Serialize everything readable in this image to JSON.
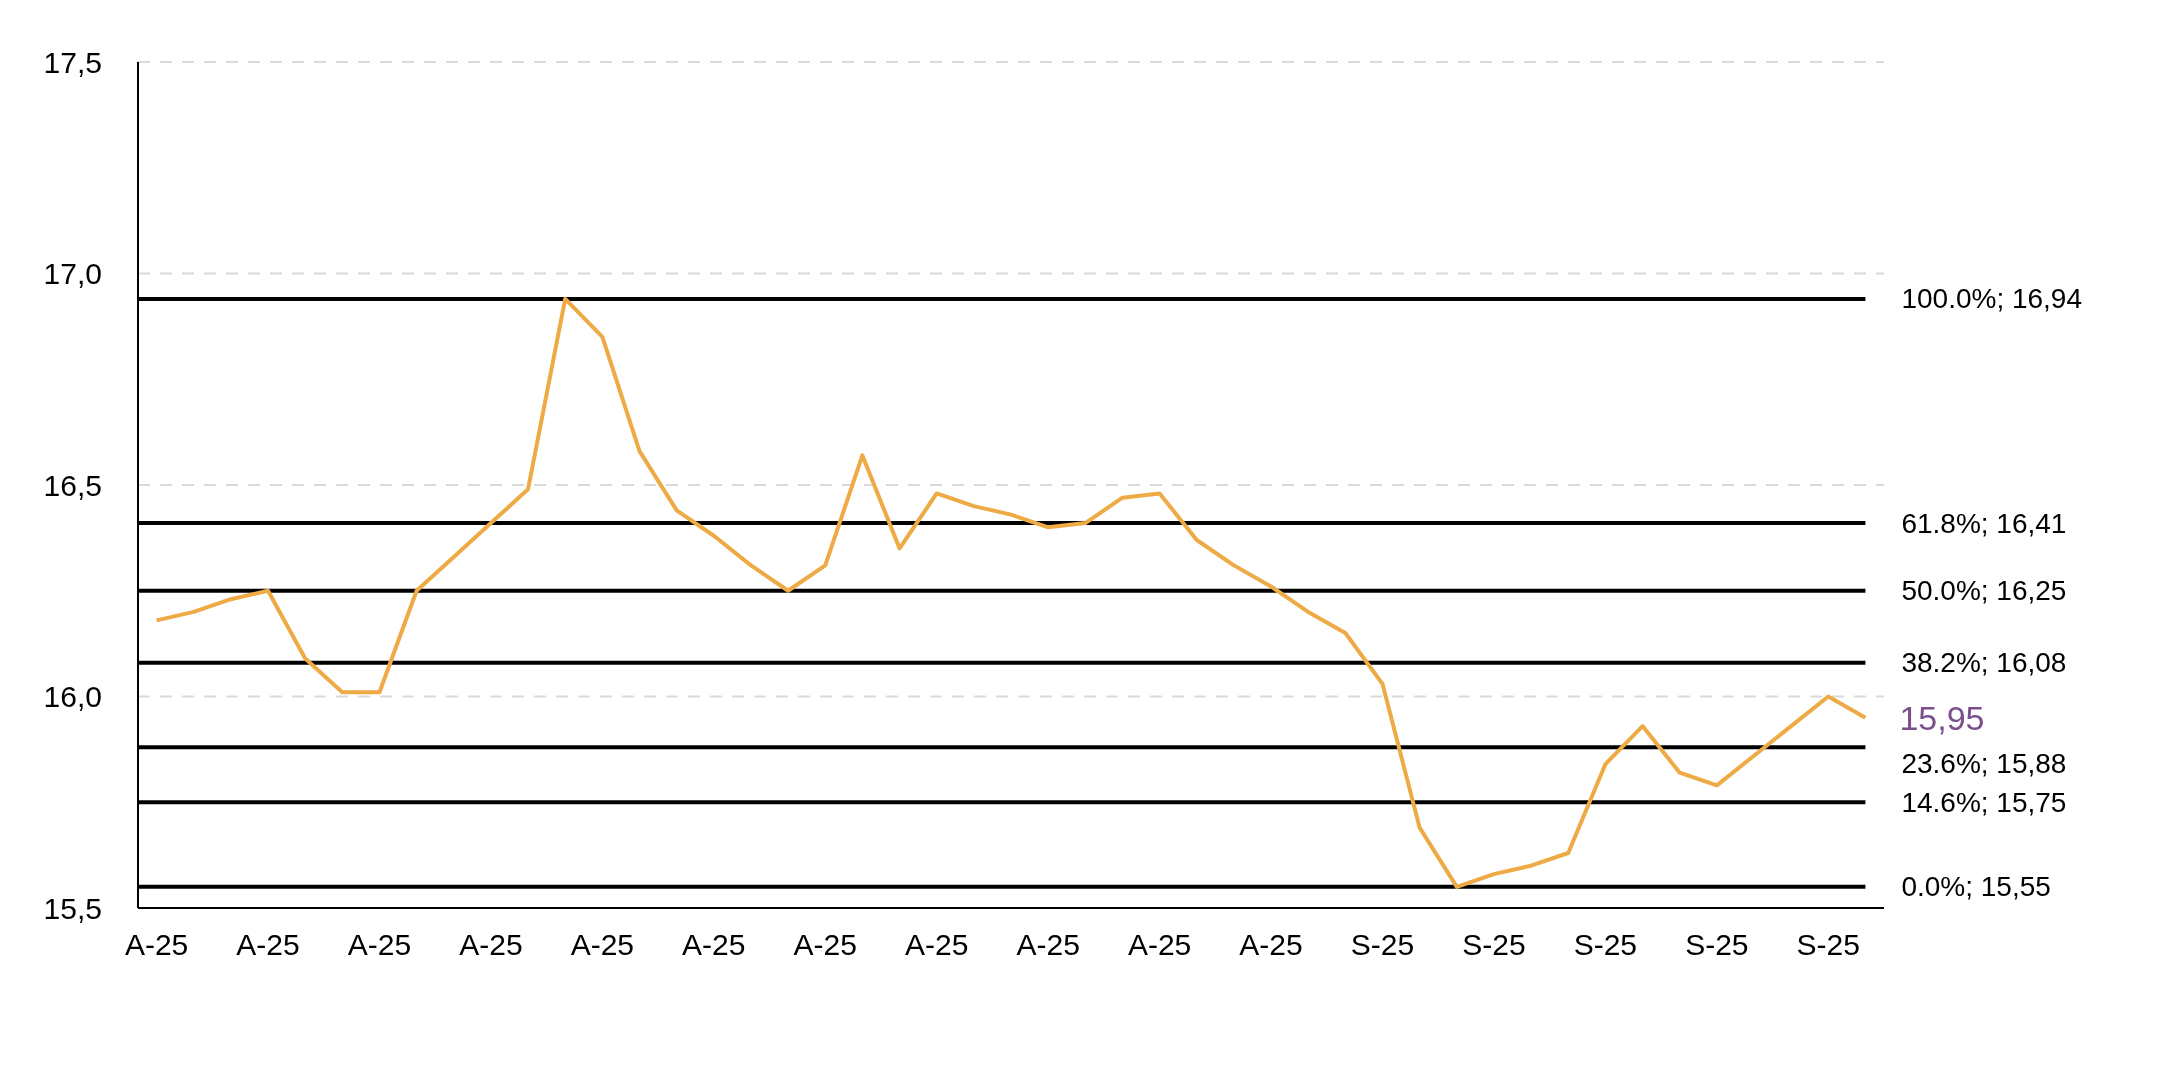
{
  "chart_data": {
    "type": "line",
    "categories": [
      "A-25",
      null,
      null,
      "A-25",
      null,
      null,
      "A-25",
      null,
      null,
      "A-25",
      null,
      null,
      "A-25",
      null,
      null,
      "A-25",
      null,
      null,
      "A-25",
      null,
      null,
      "A-25",
      null,
      null,
      "A-25",
      null,
      null,
      "A-25",
      null,
      null,
      "A-25",
      null,
      null,
      "S-25",
      null,
      null,
      "S-25",
      null,
      null,
      "S-25",
      null,
      null,
      "S-25",
      null,
      null,
      "S-25",
      null
    ],
    "series": [
      {
        "color": "#eeaa44",
        "values": [
          16.18,
          16.2,
          16.23,
          16.25,
          16.09,
          16.01,
          16.01,
          16.25,
          16.33,
          16.41,
          16.49,
          16.94,
          16.85,
          16.58,
          16.44,
          16.38,
          16.31,
          16.25,
          16.31,
          16.57,
          16.35,
          16.48,
          16.45,
          16.43,
          16.4,
          16.41,
          16.47,
          16.48,
          16.37,
          16.31,
          16.26,
          16.2,
          16.15,
          16.03,
          15.69,
          15.55,
          15.58,
          15.6,
          15.63,
          15.84,
          15.93,
          15.82,
          15.79,
          15.86,
          15.93,
          16.0,
          15.95
        ]
      }
    ],
    "ylim": [
      15.5,
      17.5
    ],
    "yticks": [
      {
        "value": 15.5,
        "label": "15,5"
      },
      {
        "value": 16,
        "label": "16,0"
      },
      {
        "value": 16.5,
        "label": "16,5"
      },
      {
        "value": 17,
        "label": "17,0"
      },
      {
        "value": 17.5,
        "label": "17,5"
      }
    ],
    "grid": "y",
    "legend": false,
    "marker": "none",
    "line_style": "solid",
    "ref_lines": [
      {
        "axis": "y",
        "value": 16.94,
        "label": "100.0%; 16,94",
        "color": "#000000"
      },
      {
        "axis": "y",
        "value": 16.41,
        "label": "61.8%; 16,41",
        "color": "#000000"
      },
      {
        "axis": "y",
        "value": 16.25,
        "label": "50.0%; 16,25",
        "color": "#000000"
      },
      {
        "axis": "y",
        "value": 16.08,
        "label": "38.2%; 16,08",
        "color": "#000000"
      },
      {
        "axis": "y",
        "value": 15.88,
        "label": "23.6%; 15,88",
        "color": "#000000"
      },
      {
        "axis": "y",
        "value": 15.75,
        "label": "14.6%; 15,75",
        "color": "#000000"
      },
      {
        "axis": "y",
        "value": 15.55,
        "label": "0.0%; 15,55",
        "color": "#000000"
      }
    ],
    "annotations": [
      "15,95"
    ]
  }
}
